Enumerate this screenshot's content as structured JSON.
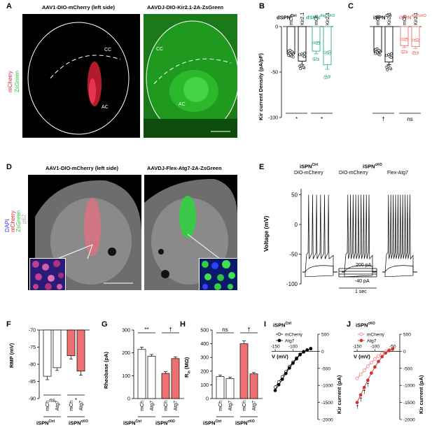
{
  "panels": {
    "A": {
      "letter": "A",
      "left_title": "AAV1-DIO-mCherry (left side)",
      "right_title": "AAVDJ-DIO-Kir2.1-2A-ZsGreen",
      "legend_mcherry": "mCherry",
      "legend_zsgreen": "ZsGreen",
      "cc": "CC",
      "ac": "AC"
    },
    "B": {
      "letter": "B",
      "group_ctrl": "dSPN",
      "group_ctrl_sup": "Ctrl",
      "group_cko": "dSPN",
      "group_cko_sup": "Atg7cKO",
      "ylabel": "Kir current Density  (pA/pF)",
      "x_labels": [
        "mCh",
        "Kir2.1",
        "mCh",
        "Kir2.1"
      ],
      "sig": [
        "*",
        "*"
      ]
    },
    "C": {
      "letter": "C",
      "group_ctrl": "iSPN",
      "group_ctrl_sup": "Ctrl",
      "group_cko": "iSPN",
      "group_cko_sup": "Atg7cKO",
      "x_labels": [
        "mCh",
        "Kir2.1",
        "mCh",
        "Kir2.1"
      ],
      "sig": [
        "†",
        "ns"
      ]
    },
    "D": {
      "letter": "D",
      "left_title": "AAV1-DIO-mCherry (left side)",
      "right_title": "AAVDJ-Flex-Atg7-2A-ZsGreen",
      "legend": [
        "DAPI",
        "mCherry",
        "ZsGreen",
        "p62"
      ]
    },
    "E": {
      "letter": "E",
      "ctrl_label": "iSPN",
      "ctrl_sup": "Ctrl",
      "cko_label": "iSPN",
      "cko_sup": "cKO",
      "cond1": "DIO-mCherry",
      "cond2": "DIO-mCherry",
      "cond3": "Flex-Atg7",
      "ylabel": "Voltage (mV)",
      "yticks": [
        "50",
        "0",
        "-50",
        "-100"
      ],
      "step_top": "200 pA",
      "step_bottom": "-40 pA",
      "duration": "1 sec"
    },
    "F": {
      "letter": "F",
      "ylabel": "RMP (mV)",
      "yticks": [
        "-70",
        "-75",
        "-80",
        "-85",
        "-90"
      ],
      "x_labels": [
        "mCh",
        "Atg7",
        "mCh",
        "Atg7"
      ],
      "sig": [
        "ns",
        "*"
      ],
      "group1": "iSPN",
      "group1_sup": "Ctrl",
      "group2": "iSPN",
      "group2_sup": "cKO"
    },
    "G": {
      "letter": "G",
      "ylabel": "Rheobase (pA)",
      "yticks": [
        "0",
        "100",
        "200",
        "300"
      ],
      "x_labels": [
        "mCh",
        "Atg7",
        "mCh",
        "Atg7"
      ],
      "sig": [
        "**",
        "†"
      ],
      "group1": "iSPN",
      "group1_sup": "Ctrl",
      "group2": "iSPN",
      "group2_sup": "cKO"
    },
    "H": {
      "letter": "H",
      "ylabel": "R",
      "ylabel_sub": "in",
      "ylabel_unit": " (MΩ)",
      "yticks": [
        "0",
        "100",
        "200",
        "300",
        "400",
        "500"
      ],
      "x_labels": [
        "mCh",
        "Atg7",
        "mCh",
        "Atg7"
      ],
      "sig": [
        "ns",
        "†"
      ],
      "group1": "iSPN",
      "group1_sup": "Ctrl",
      "group2": "iSPN",
      "group2_sup": "cKO"
    },
    "I": {
      "letter": "I",
      "title": "iSPN",
      "title_sup": "Ctrl",
      "legend": [
        "mCherry",
        "Atg7"
      ],
      "xlabel": "V (mV)",
      "ylabel": "Kir current (pA)",
      "xticks": [
        "-150",
        "-100"
      ],
      "yticks": [
        "500",
        "0",
        "-500",
        "-1000",
        "-1500",
        "-2000"
      ]
    },
    "J": {
      "letter": "J",
      "title": "iSPN",
      "title_sup": "cKO",
      "legend": [
        "mCherry",
        "Atg7"
      ],
      "xlabel": "V (mV)",
      "ylabel": "Kir current (pA)",
      "xticks": [
        "-150",
        "-100",
        "-50"
      ],
      "yticks": [
        "500",
        "0",
        "-500",
        "-1000",
        "-1500",
        "-2000"
      ],
      "marks": [
        "†",
        "†",
        "†",
        "†"
      ]
    }
  },
  "colors": {
    "red": "#ef7070",
    "green": "#2fb083",
    "ctrl_dark": "#000000"
  },
  "chart_data": [
    {
      "type": "bar",
      "title": "B",
      "ylabel": "Kir current Density (pA/pF)",
      "ylim": [
        -100,
        0
      ],
      "categories": [
        "mCh",
        "Kir2.1",
        "mCh",
        "Kir2.1"
      ],
      "groups": [
        "dSPN Ctrl",
        "dSPN Atg7cKO"
      ],
      "values": [
        -30,
        -38,
        -27,
        -42
      ],
      "errors": [
        3,
        4,
        3,
        5
      ],
      "colors": [
        "#000000",
        "#000000",
        "#2fb083",
        "#2fb083"
      ]
    },
    {
      "type": "bar",
      "title": "C",
      "ylim": [
        -100,
        0
      ],
      "categories": [
        "mCh",
        "Kir2.1",
        "mCh",
        "Kir2.1"
      ],
      "groups": [
        "iSPN Ctrl",
        "iSPN Atg7cKO"
      ],
      "values": [
        -28,
        -39,
        -21,
        -22
      ],
      "errors": [
        2,
        3,
        2,
        2
      ],
      "colors": [
        "#000000",
        "#000000",
        "#ef7070",
        "#ef7070"
      ]
    },
    {
      "type": "bar",
      "title": "F",
      "ylabel": "RMP (mV)",
      "ylim": [
        -90,
        -70
      ],
      "categories": [
        "mCh",
        "Atg7",
        "mCh",
        "Atg7"
      ],
      "values": [
        -83.5,
        -81,
        -77.5,
        -82
      ],
      "errors": [
        1,
        0.8,
        1,
        1.2
      ],
      "fill": [
        "#ffffff",
        "#ffffff",
        "#ef7070",
        "#ef7070"
      ]
    },
    {
      "type": "bar",
      "title": "G",
      "ylabel": "Rheobase (pA)",
      "ylim": [
        0,
        300
      ],
      "categories": [
        "mCh",
        "Atg7",
        "mCh",
        "Atg7"
      ],
      "values": [
        215,
        185,
        110,
        175
      ],
      "errors": [
        10,
        8,
        8,
        7
      ],
      "fill": [
        "#ffffff",
        "#ffffff",
        "#ef7070",
        "#ef7070"
      ]
    },
    {
      "type": "bar",
      "title": "H",
      "ylabel": "Rin (MΩ)",
      "ylim": [
        0,
        500
      ],
      "categories": [
        "mCh",
        "Atg7",
        "mCh",
        "Atg7"
      ],
      "values": [
        160,
        145,
        400,
        180
      ],
      "errors": [
        12,
        10,
        20,
        10
      ],
      "fill": [
        "#ffffff",
        "#ffffff",
        "#ef7070",
        "#ef7070"
      ]
    },
    {
      "type": "line",
      "title": "I",
      "xlim": [
        -160,
        -30
      ],
      "ylim": [
        -2000,
        500
      ],
      "x": [
        -150,
        -140,
        -130,
        -120,
        -110,
        -100,
        -90,
        -80,
        -70,
        -60,
        -50
      ],
      "series": [
        {
          "name": "mCherry",
          "values": [
            -1050,
            -900,
            -750,
            -600,
            -450,
            -320,
            -200,
            -90,
            -10,
            40,
            80
          ]
        },
        {
          "name": "Atg7",
          "values": [
            -1150,
            -980,
            -820,
            -650,
            -490,
            -350,
            -220,
            -100,
            -20,
            35,
            75
          ]
        }
      ]
    },
    {
      "type": "line",
      "title": "J",
      "xlim": [
        -160,
        -30
      ],
      "ylim": [
        -2000,
        500
      ],
      "x": [
        -150,
        -140,
        -130,
        -120,
        -110,
        -100,
        -90,
        -80,
        -70,
        -60,
        -50
      ],
      "series": [
        {
          "name": "mCherry",
          "values": [
            -800,
            -680,
            -560,
            -440,
            -330,
            -230,
            -140,
            -60,
            0,
            40,
            70
          ]
        },
        {
          "name": "Atg7",
          "values": [
            -1500,
            -1280,
            -1060,
            -850,
            -640,
            -460,
            -300,
            -160,
            -50,
            20,
            70
          ]
        }
      ]
    }
  ]
}
